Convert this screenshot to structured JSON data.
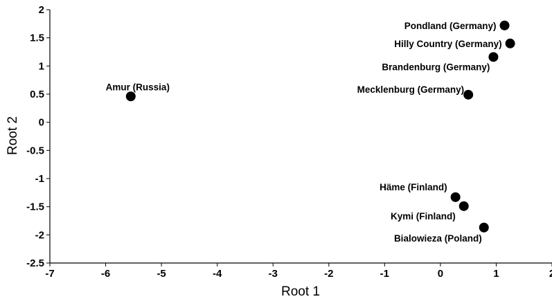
{
  "chart_data": {
    "type": "scatter",
    "xlabel": "Root 1",
    "ylabel": "Root 2",
    "xlim": [
      -7,
      2
    ],
    "ylim": [
      -2.5,
      2
    ],
    "x_ticks": [
      -7,
      -6,
      -5,
      -4,
      -3,
      -2,
      -1,
      0,
      1,
      2
    ],
    "y_ticks": [
      2,
      1.5,
      1,
      0.5,
      0,
      -0.5,
      -1,
      -1.5,
      -2,
      -2.5
    ],
    "grid": false,
    "marker_color": "#000000",
    "points": [
      {
        "label": "Amur (Russia)",
        "x": -5.55,
        "y": 0.46
      },
      {
        "label": "Pondland (Germany)",
        "x": 1.15,
        "y": 1.72
      },
      {
        "label": "Hilly Country (Germany)",
        "x": 1.25,
        "y": 1.4
      },
      {
        "label": "Brandenburg (Germany)",
        "x": 0.95,
        "y": 1.16
      },
      {
        "label": "Mecklenburg (Germany)",
        "x": 0.5,
        "y": 0.49
      },
      {
        "label": "Häme (Finland)",
        "x": 0.27,
        "y": -1.33
      },
      {
        "label": "Kymi (Finland)",
        "x": 0.42,
        "y": -1.49
      },
      {
        "label": "Bialowieza (Poland)",
        "x": 0.78,
        "y": -1.87
      }
    ]
  }
}
